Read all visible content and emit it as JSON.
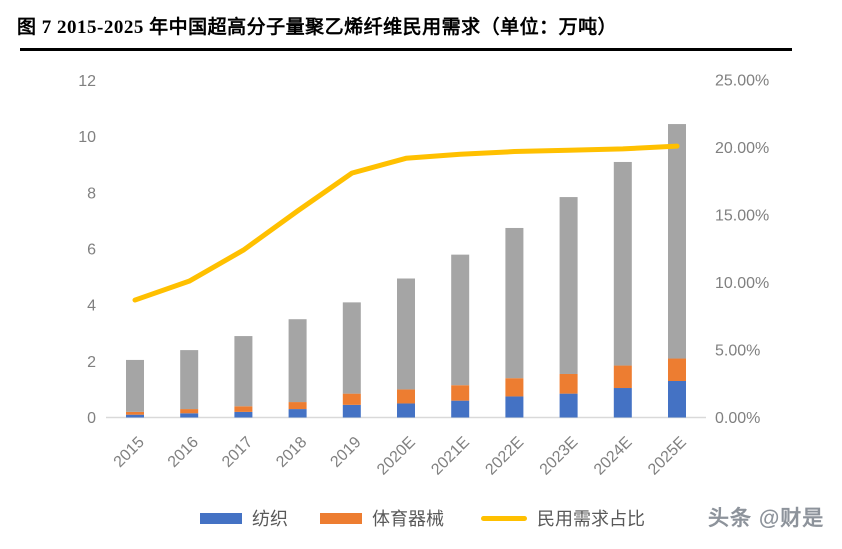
{
  "title": "图 7 2015-2025 年中国超高分子量聚乙烯纤维民用需求（单位：万吨）",
  "watermark": "头条 @财是",
  "legend": {
    "items": [
      {
        "label": "纺织",
        "color": "#4472C4",
        "swatch": "bar"
      },
      {
        "label": "体育器械",
        "color": "#ED7D31",
        "swatch": "bar"
      },
      {
        "label": "民用需求占比",
        "color": "#FFC000",
        "swatch": "line"
      }
    ]
  },
  "chart_data": {
    "type": "bar",
    "subtype": "stacked-bar with overlay line (combo chart)",
    "title": "图 7 2015-2025 年中国超高分子量聚乙烯纤维民用需求（单位：万吨）",
    "unit": "万吨",
    "categories": [
      "2015",
      "2016",
      "2017",
      "2018",
      "2019",
      "2020E",
      "2021E",
      "2022E",
      "2023E",
      "2024E",
      "2025E"
    ],
    "series": [
      {
        "name": "纺织",
        "type": "bar",
        "axis": "left",
        "color": "#4472C4",
        "in_legend": true,
        "values": [
          0.1,
          0.15,
          0.2,
          0.3,
          0.45,
          0.5,
          0.6,
          0.75,
          0.85,
          1.05,
          1.3
        ]
      },
      {
        "name": "体育器械",
        "type": "bar",
        "axis": "left",
        "color": "#ED7D31",
        "in_legend": true,
        "values": [
          0.1,
          0.15,
          0.2,
          0.25,
          0.4,
          0.5,
          0.55,
          0.65,
          0.7,
          0.8,
          0.8
        ]
      },
      {
        "name": "",
        "type": "bar",
        "axis": "left",
        "color": "#A5A5A5",
        "in_legend": false,
        "values": [
          1.85,
          2.1,
          2.5,
          2.95,
          3.25,
          3.95,
          4.65,
          5.35,
          6.3,
          7.25,
          8.35
        ]
      },
      {
        "name": "民用需求占比",
        "type": "line",
        "axis": "right",
        "color": "#FFC000",
        "in_legend": true,
        "values": [
          8.7,
          10.1,
          12.4,
          15.3,
          18.1,
          19.2,
          19.5,
          19.7,
          19.8,
          19.9,
          20.1
        ]
      }
    ],
    "bar_totals": [
      2.05,
      2.4,
      2.9,
      3.5,
      4.1,
      4.95,
      5.8,
      6.75,
      7.85,
      9.1,
      10.45
    ],
    "left_axis": {
      "ticks": [
        "0",
        "2",
        "4",
        "6",
        "8",
        "10",
        "12"
      ],
      "range": [
        0,
        12
      ]
    },
    "right_axis": {
      "ticks": [
        {
          "label": "0.00%",
          "value": 0
        },
        {
          "label": "5.00%",
          "value": 5
        },
        {
          "label": "10.00%",
          "value": 10
        },
        {
          "label": "15.00%",
          "value": 15
        },
        {
          "label": "20.00%",
          "value": 20
        },
        {
          "label": "25.00%",
          "value": 25
        }
      ],
      "range": [
        0,
        25
      ]
    },
    "stacked": true,
    "grid": false,
    "legend_position": "bottom",
    "x_label_rotation_deg": -45,
    "axis_line_color": "#D9D9D9",
    "tick_label_color": "#808080"
  }
}
